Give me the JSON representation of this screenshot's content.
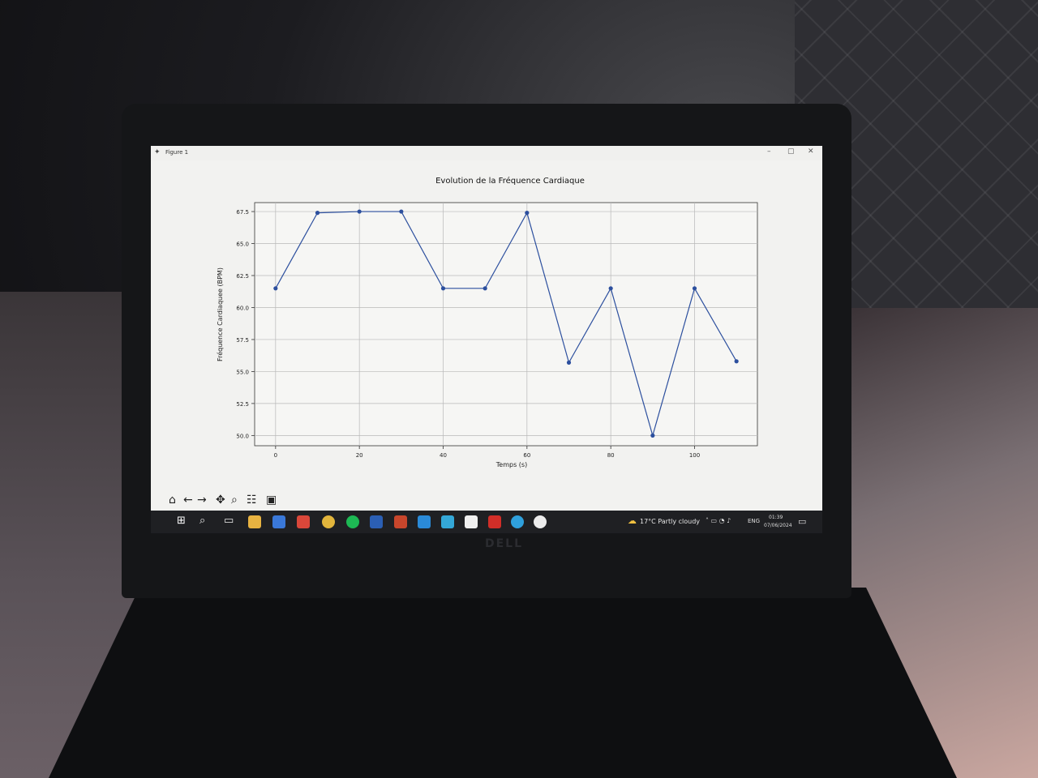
{
  "window": {
    "title": "Figure 1"
  },
  "chart_data": {
    "type": "line",
    "title": "Evolution de la Fréquence Cardiaque",
    "xlabel": "Temps (s)",
    "ylabel": "Fréquence Cardiaquee (BPM)",
    "x": [
      0,
      10,
      20,
      30,
      40,
      50,
      60,
      70,
      80,
      90,
      100,
      110
    ],
    "y": [
      61.5,
      67.4,
      67.5,
      67.5,
      61.5,
      61.5,
      67.4,
      55.7,
      61.5,
      50.0,
      61.5,
      55.8
    ],
    "xlim": [
      -5,
      115
    ],
    "ylim": [
      49.2,
      68.2
    ],
    "xticks": [
      0,
      20,
      40,
      60,
      80,
      100
    ],
    "yticks": [
      50.0,
      52.5,
      55.0,
      57.5,
      60.0,
      62.5,
      65.0,
      67.5
    ],
    "xtick_labels": [
      "0",
      "20",
      "40",
      "60",
      "80",
      "100"
    ],
    "ytick_labels": [
      "50.0",
      "52.5",
      "55.0",
      "57.5",
      "60.0",
      "62.5",
      "65.0",
      "67.5"
    ],
    "grid": true,
    "line_color": "#2c4f9e",
    "marker": "circle"
  },
  "toolbar": {
    "home": "⌂",
    "back": "←",
    "forward": "→",
    "pan": "✥",
    "zoom": "⌕",
    "configure": "☷",
    "save": "▣"
  },
  "taskbar": {
    "weather": "17°C  Partly cloudy",
    "language": "ENG",
    "time": "01:39",
    "date": "07/06/2024"
  },
  "colors": {
    "accent": "#2c4f9e",
    "taskbar": "#1f2023"
  }
}
